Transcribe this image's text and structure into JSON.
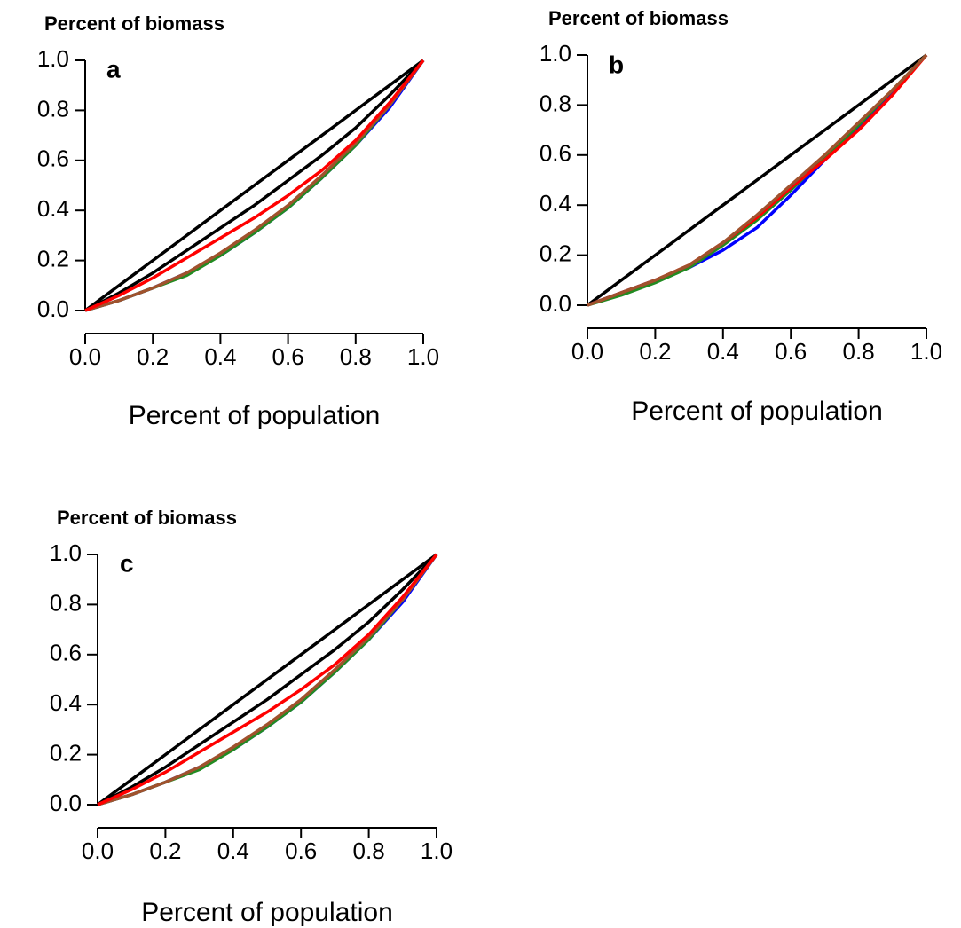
{
  "chart_data": [
    {
      "type": "line",
      "title": "Percent of biomass",
      "annotation": "a",
      "x_label": "Percent of population",
      "x": [
        0,
        0.1,
        0.2,
        0.3,
        0.4,
        0.5,
        0.6,
        0.7,
        0.8,
        0.9,
        1
      ],
      "series": [
        {
          "color": "#000000",
          "values": [
            0,
            0.1,
            0.2,
            0.3,
            0.4,
            0.5,
            0.6,
            0.7,
            0.8,
            0.9,
            1
          ]
        },
        {
          "color": "#000000",
          "values": [
            0,
            0.07,
            0.15,
            0.24,
            0.33,
            0.42,
            0.52,
            0.62,
            0.73,
            0.86,
            1
          ]
        },
        {
          "color": "#0000ff",
          "values": [
            0,
            0.04,
            0.09,
            0.15,
            0.22,
            0.31,
            0.41,
            0.53,
            0.66,
            0.81,
            1
          ]
        },
        {
          "color": "#228b22",
          "values": [
            0,
            0.04,
            0.09,
            0.14,
            0.22,
            0.31,
            0.41,
            0.53,
            0.66,
            0.82,
            1
          ]
        },
        {
          "color": "#a0522d",
          "values": [
            0,
            0.04,
            0.09,
            0.15,
            0.23,
            0.32,
            0.42,
            0.54,
            0.67,
            0.82,
            1
          ]
        },
        {
          "color": "#ff0000",
          "values": [
            0,
            0.06,
            0.13,
            0.21,
            0.29,
            0.37,
            0.46,
            0.56,
            0.68,
            0.83,
            1
          ]
        }
      ],
      "xlim": [
        0,
        1
      ],
      "ylim": [
        0,
        1
      ],
      "xticks": [
        {
          "value": 0,
          "label": "0.0"
        },
        0.2,
        0.4,
        0.6,
        0.8,
        {
          "value": 1,
          "label": "1.0"
        }
      ],
      "yticks": [
        {
          "value": 0,
          "label": "0.0"
        },
        0.2,
        0.4,
        0.6,
        0.8,
        {
          "value": 1,
          "label": "1.0"
        }
      ]
    },
    {
      "type": "line",
      "title": "Percent of biomass",
      "annotation": "b",
      "x_label": "Percent of population",
      "x": [
        0,
        0.1,
        0.2,
        0.3,
        0.4,
        0.5,
        0.6,
        0.7,
        0.8,
        0.9,
        1
      ],
      "series": [
        {
          "color": "#000000",
          "values": [
            0,
            0.1,
            0.2,
            0.3,
            0.4,
            0.5,
            0.6,
            0.7,
            0.8,
            0.9,
            1
          ]
        },
        {
          "color": "#0000ff",
          "values": [
            0,
            0.05,
            0.1,
            0.15,
            0.22,
            0.31,
            0.44,
            0.58,
            0.71,
            0.85,
            1
          ]
        },
        {
          "color": "#228b22",
          "values": [
            0,
            0.04,
            0.09,
            0.15,
            0.24,
            0.34,
            0.46,
            0.59,
            0.72,
            0.86,
            1
          ]
        },
        {
          "color": "#ff0000",
          "values": [
            0,
            0.05,
            0.1,
            0.16,
            0.25,
            0.35,
            0.47,
            0.58,
            0.7,
            0.84,
            1
          ]
        },
        {
          "color": "#a0522d",
          "values": [
            0,
            0.05,
            0.1,
            0.16,
            0.25,
            0.36,
            0.48,
            0.6,
            0.73,
            0.86,
            1
          ]
        }
      ],
      "xlim": [
        0,
        1
      ],
      "ylim": [
        0,
        1
      ],
      "xticks": [
        {
          "value": 0,
          "label": "0.0"
        },
        0.2,
        0.4,
        0.6,
        0.8,
        {
          "value": 1,
          "label": "1.0"
        }
      ],
      "yticks": [
        {
          "value": 0,
          "label": "0.0"
        },
        0.2,
        0.4,
        0.6,
        0.8,
        {
          "value": 1,
          "label": "1.0"
        }
      ]
    },
    {
      "type": "line",
      "title": "Percent of biomass",
      "annotation": "c",
      "x_label": "Percent of population",
      "x": [
        0,
        0.1,
        0.2,
        0.3,
        0.4,
        0.5,
        0.6,
        0.7,
        0.8,
        0.9,
        1
      ],
      "series": [
        {
          "color": "#000000",
          "values": [
            0,
            0.1,
            0.2,
            0.3,
            0.4,
            0.5,
            0.6,
            0.7,
            0.8,
            0.9,
            1
          ]
        },
        {
          "color": "#000000",
          "values": [
            0,
            0.07,
            0.15,
            0.24,
            0.33,
            0.42,
            0.52,
            0.62,
            0.73,
            0.86,
            1
          ]
        },
        {
          "color": "#0000ff",
          "values": [
            0,
            0.04,
            0.09,
            0.15,
            0.22,
            0.31,
            0.41,
            0.53,
            0.66,
            0.81,
            1
          ]
        },
        {
          "color": "#228b22",
          "values": [
            0,
            0.04,
            0.09,
            0.14,
            0.22,
            0.31,
            0.41,
            0.53,
            0.66,
            0.82,
            1
          ]
        },
        {
          "color": "#a0522d",
          "values": [
            0,
            0.04,
            0.09,
            0.15,
            0.23,
            0.32,
            0.42,
            0.54,
            0.67,
            0.82,
            1
          ]
        },
        {
          "color": "#ff0000",
          "values": [
            0,
            0.06,
            0.13,
            0.21,
            0.29,
            0.37,
            0.46,
            0.56,
            0.68,
            0.83,
            1
          ]
        }
      ],
      "xlim": [
        0,
        1
      ],
      "ylim": [
        0,
        1
      ],
      "xticks": [
        {
          "value": 0,
          "label": "0.0"
        },
        0.2,
        0.4,
        0.6,
        0.8,
        {
          "value": 1,
          "label": "1.0"
        }
      ],
      "yticks": [
        {
          "value": 0,
          "label": "0.0"
        },
        0.2,
        0.4,
        0.6,
        0.8,
        {
          "value": 1,
          "label": "1.0"
        }
      ]
    }
  ]
}
